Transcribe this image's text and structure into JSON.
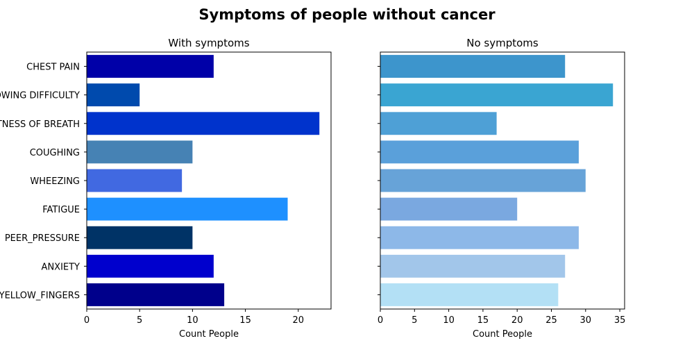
{
  "figure": {
    "title": "Symptoms of people without cancer"
  },
  "chart_data": [
    {
      "type": "bar",
      "orientation": "horizontal",
      "title": "With symptoms",
      "xlabel": "Count People",
      "ylabel": "",
      "xlim": [
        0,
        23.1
      ],
      "xticks": [
        0,
        5,
        10,
        15,
        20
      ],
      "categories": [
        "CHEST PAIN",
        "SWALLOWING DIFFICULTY",
        "SHORTNESS OF BREATH",
        "COUGHING",
        "WHEEZING",
        "FATIGUE ",
        "PEER_PRESSURE",
        "ANXIETY",
        "YELLOW_FINGERS"
      ],
      "values": [
        12,
        5,
        22,
        10,
        9,
        19,
        10,
        12,
        13
      ],
      "colors": [
        "#0000a8",
        "#004aad",
        "#0033cc",
        "#4682b4",
        "#4169e1",
        "#1e90ff",
        "#003366",
        "#0000cd",
        "#00008b"
      ],
      "grid": false,
      "legend": "none"
    },
    {
      "type": "bar",
      "orientation": "horizontal",
      "title": "No symptoms",
      "xlabel": "Count People",
      "ylabel": "",
      "xlim": [
        0,
        35.7
      ],
      "xticks": [
        0,
        5,
        10,
        15,
        20,
        25,
        30,
        35
      ],
      "categories": [
        "CHEST PAIN",
        "SWALLOWING DIFFICULTY",
        "SHORTNESS OF BREATH",
        "COUGHING",
        "WHEEZING",
        "FATIGUE ",
        "PEER_PRESSURE",
        "ANXIETY",
        "YELLOW_FINGERS"
      ],
      "values": [
        27,
        34,
        17,
        29,
        30,
        20,
        29,
        27,
        26
      ],
      "colors": [
        "#3d95cc",
        "#3aa5d2",
        "#4ea0d6",
        "#5aa0da",
        "#67a3d8",
        "#7aa8e0",
        "#8db8e8",
        "#a2c6ea",
        "#b3e0f5"
      ],
      "grid": false,
      "legend": "none"
    }
  ]
}
